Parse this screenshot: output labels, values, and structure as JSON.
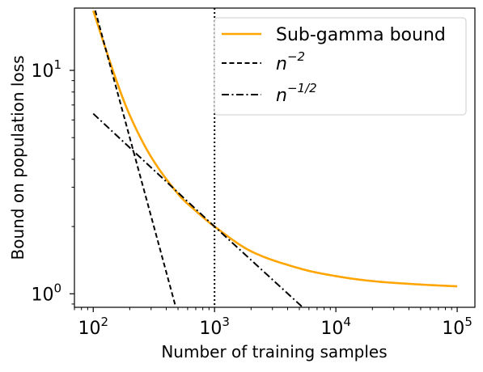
{
  "chart_data": {
    "type": "line",
    "title": "",
    "xlabel": "Number of training samples",
    "ylabel": "Bound on population loss",
    "xscale": "log",
    "yscale": "log",
    "xlim": [
      70,
      140000
    ],
    "ylim": [
      0.87,
      19
    ],
    "grid": false,
    "legend_position": "top-right",
    "x_ticks": [
      {
        "value": 100,
        "base": "10",
        "exp": "2"
      },
      {
        "value": 1000,
        "base": "10",
        "exp": "3"
      },
      {
        "value": 10000,
        "base": "10",
        "exp": "4"
      },
      {
        "value": 100000,
        "base": "10",
        "exp": "5"
      }
    ],
    "y_ticks": [
      {
        "value": 1,
        "base": "10",
        "exp": "0"
      },
      {
        "value": 10,
        "base": "10",
        "exp": "1"
      }
    ],
    "series": [
      {
        "name": "Sub-gamma bound",
        "legend_base": "Sub-gamma bound",
        "legend_exp": "",
        "color": "#FFA500",
        "style": "solid",
        "x": [
          100,
          150,
          200,
          300,
          500,
          700,
          1000,
          2000,
          5000,
          10000,
          20000,
          50000,
          100000
        ],
        "y": [
          18.5,
          9.5,
          6.3,
          4.1,
          2.8,
          2.35,
          2.0,
          1.55,
          1.3,
          1.2,
          1.14,
          1.1,
          1.08
        ]
      },
      {
        "name": "n^-2",
        "legend_base": "n",
        "legend_exp": "−2",
        "color": "#000000",
        "style": "dashed",
        "x": [
          100,
          200,
          500
        ],
        "y": [
          20,
          5,
          0.8
        ]
      },
      {
        "name": "n^-1/2",
        "legend_base": "n",
        "legend_exp": "−1/2",
        "color": "#000000",
        "style": "dashdot",
        "x": [
          100,
          1000,
          6000
        ],
        "y": [
          6.4,
          2.0,
          0.82
        ]
      }
    ],
    "annotations": [
      {
        "type": "vline",
        "x": 1000,
        "style": "dotted",
        "color": "#000000"
      }
    ]
  }
}
